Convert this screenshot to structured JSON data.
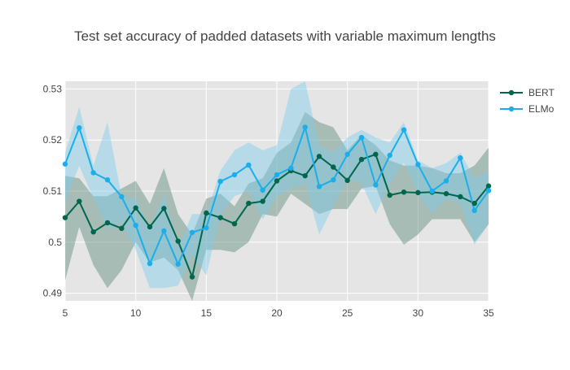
{
  "chart_data": {
    "type": "line",
    "title": "Test set accuracy of padded datasets with variable maximum lengths",
    "xlabel": "",
    "ylabel": "",
    "xlim": [
      5,
      35
    ],
    "ylim": [
      0.4885,
      0.5315
    ],
    "x_ticks": [
      5,
      10,
      15,
      20,
      25,
      30,
      35
    ],
    "y_ticks": [
      0.49,
      0.5,
      0.51,
      0.52,
      0.53
    ],
    "y_tick_labels": [
      "0.49",
      "0.5",
      "0.51",
      "0.52",
      "0.53"
    ],
    "grid": true,
    "legend_position": "top-right",
    "x": [
      5,
      6,
      7,
      8,
      9,
      10,
      11,
      12,
      13,
      14,
      15,
      16,
      17,
      18,
      19,
      20,
      21,
      22,
      23,
      24,
      25,
      26,
      27,
      28,
      29,
      30,
      31,
      32,
      33,
      34,
      35
    ],
    "series": [
      {
        "name": "BERT",
        "color": "#00664d",
        "band_color": "#5a8a7a",
        "values": [
          0.5048,
          0.508,
          0.502,
          0.5038,
          0.5027,
          0.5067,
          0.503,
          0.5066,
          0.5002,
          0.4932,
          0.5057,
          0.5048,
          0.5036,
          0.5076,
          0.508,
          0.512,
          0.514,
          0.513,
          0.5168,
          0.5147,
          0.5121,
          0.5162,
          0.5172,
          0.5092,
          0.5098,
          0.5097,
          0.5098,
          0.5095,
          0.5089,
          0.5076,
          0.511
        ],
        "lower": [
          0.4925,
          0.503,
          0.4955,
          0.491,
          0.4945,
          0.5,
          0.496,
          0.497,
          0.4945,
          0.4885,
          0.4985,
          0.4985,
          0.498,
          0.5,
          0.5055,
          0.505,
          0.5095,
          0.5075,
          0.5055,
          0.5065,
          0.5065,
          0.5105,
          0.511,
          0.5035,
          0.4995,
          0.5015,
          0.5045,
          0.5045,
          0.5045,
          0.5,
          0.5035
        ],
        "upper": [
          0.513,
          0.5125,
          0.509,
          0.509,
          0.5105,
          0.512,
          0.5075,
          0.5145,
          0.5055,
          0.5015,
          0.5085,
          0.5095,
          0.507,
          0.5115,
          0.5125,
          0.5175,
          0.5195,
          0.5255,
          0.5235,
          0.5225,
          0.518,
          0.521,
          0.519,
          0.516,
          0.515,
          0.515,
          0.5145,
          0.5135,
          0.5135,
          0.515,
          0.5185
        ]
      },
      {
        "name": "ELMo",
        "color": "#1aaeea",
        "band_color": "#7ecbea",
        "values": [
          0.5153,
          0.5224,
          0.5136,
          0.5122,
          0.5089,
          0.5033,
          0.4958,
          0.5022,
          0.4957,
          0.5019,
          0.5028,
          0.5119,
          0.5132,
          0.5151,
          0.5102,
          0.5132,
          0.5145,
          0.5225,
          0.5109,
          0.5122,
          0.5172,
          0.5205,
          0.5112,
          0.517,
          0.522,
          0.5152,
          0.51,
          0.512,
          0.5165,
          0.5062,
          0.5101
        ],
        "lower": [
          0.508,
          0.515,
          0.5085,
          0.5025,
          0.504,
          0.4985,
          0.491,
          0.491,
          0.4915,
          0.4975,
          0.4935,
          0.5055,
          0.509,
          0.51,
          0.5045,
          0.509,
          0.5105,
          0.5115,
          0.5015,
          0.507,
          0.5125,
          0.5115,
          0.5055,
          0.5115,
          0.5155,
          0.5095,
          0.5055,
          0.5085,
          0.5075,
          0.4995,
          0.5035
        ],
        "upper": [
          0.5175,
          0.5265,
          0.515,
          0.5235,
          0.509,
          0.5085,
          0.5025,
          0.5095,
          0.499,
          0.5055,
          0.5055,
          0.514,
          0.518,
          0.5195,
          0.518,
          0.519,
          0.53,
          0.5315,
          0.519,
          0.5175,
          0.5205,
          0.522,
          0.5205,
          0.5195,
          0.5235,
          0.516,
          0.5145,
          0.5155,
          0.5175,
          0.5125,
          0.514
        ]
      }
    ]
  }
}
